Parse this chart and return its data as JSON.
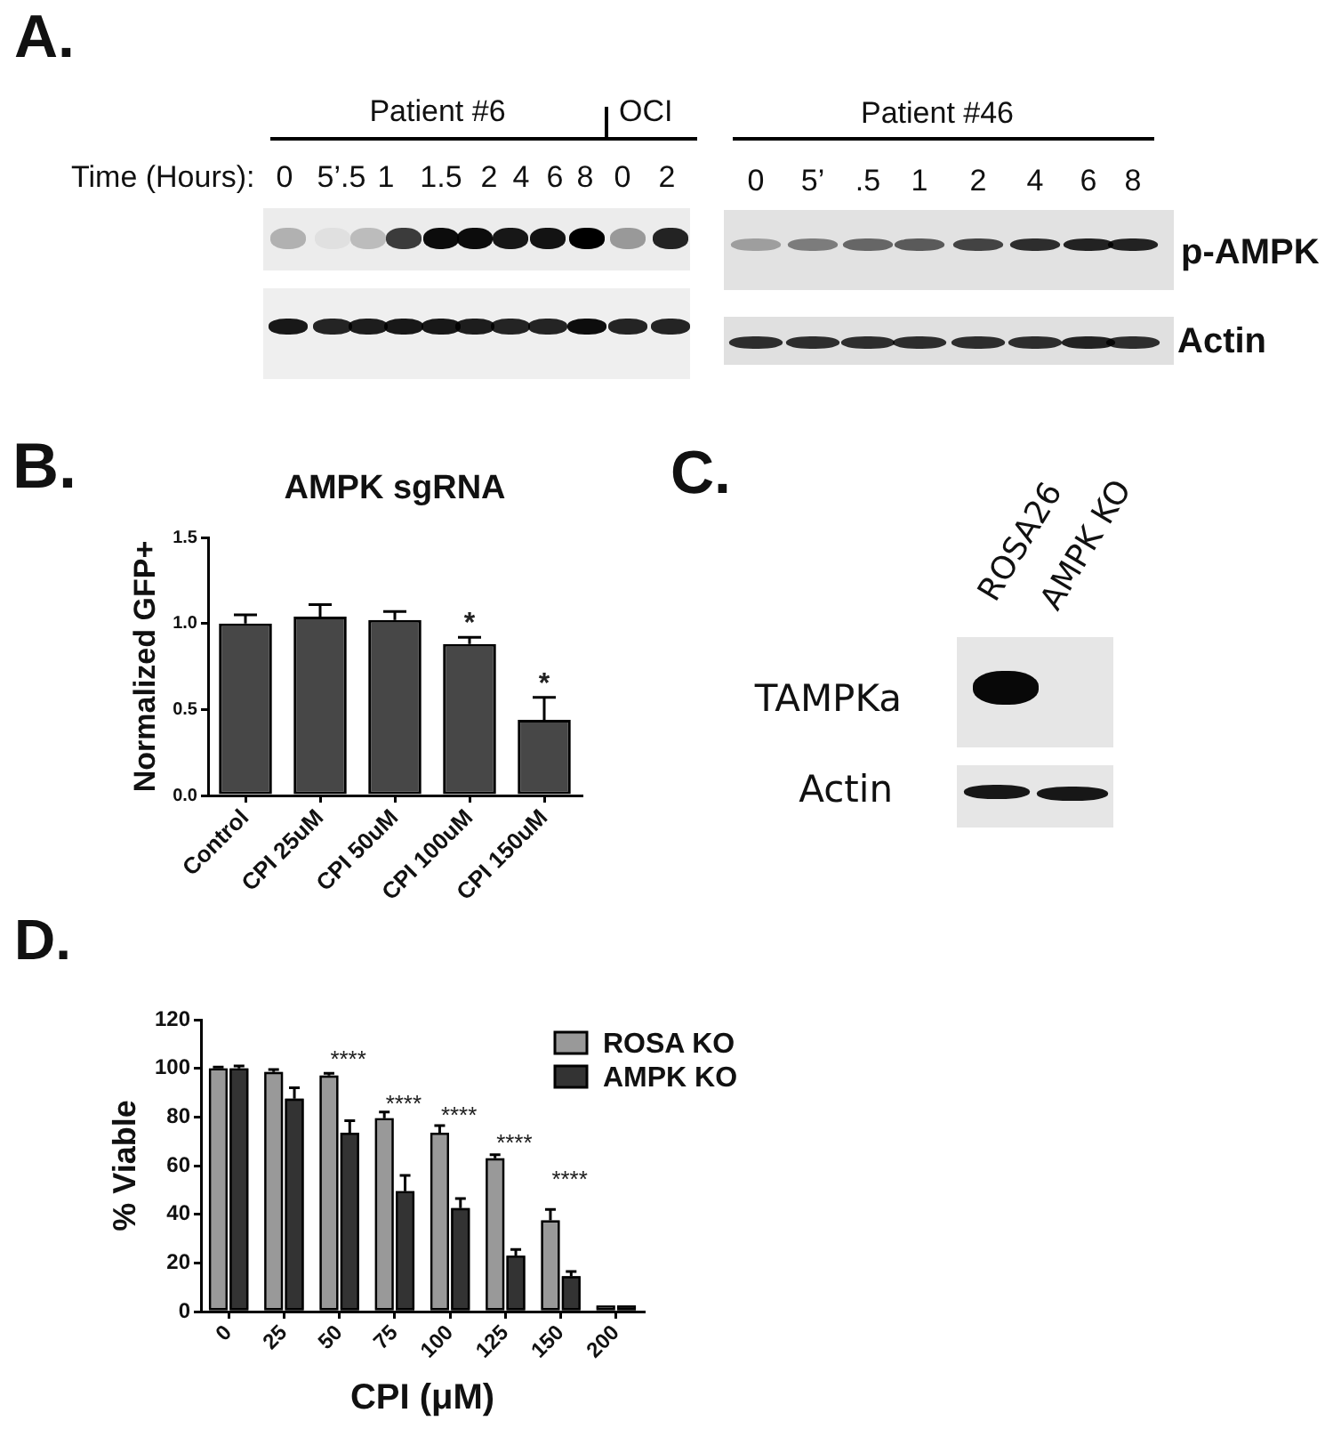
{
  "chart_data": [
    {
      "type": "other",
      "annotations": [
        "A.",
        "Patient #6",
        "OCI",
        "Time (Hours):",
        "0",
        "5’.5",
        "1",
        "1.5",
        "2",
        "4",
        "6",
        "8",
        "0",
        "2",
        "Patient #46",
        "0",
        "5’",
        ".5",
        "1",
        "2",
        "4",
        "6",
        "8",
        "p-AMPK",
        "Actin"
      ]
    },
    {
      "type": "bar",
      "title": "AMPK sgRNA",
      "ylabel": "Normalized GFP+",
      "categories": [
        "Control",
        "CPI 25uM",
        "CPI 50uM",
        "CPI 100uM",
        "CPI 150uM"
      ],
      "values": [
        1.0,
        1.04,
        1.02,
        0.88,
        0.44
      ],
      "color": "#474747",
      "errors": [
        [
          1.0,
          1.05
        ],
        [
          1.04,
          1.11
        ],
        [
          1.02,
          1.07
        ],
        [
          0.88,
          0.92
        ],
        [
          0.44,
          0.57
        ]
      ],
      "ylim": [
        0,
        1.5
      ],
      "yticks": [
        {
          "value": 0,
          "label": "0.0"
        },
        0.5,
        {
          "value": 1,
          "label": "1.0"
        },
        1.5
      ],
      "annotations": [
        "B.",
        "*",
        "*"
      ]
    },
    {
      "type": "other",
      "annotations": [
        "C.",
        "ROSA26",
        "AMPK KO",
        "TAMPKa",
        "Actin"
      ]
    },
    {
      "type": "bar",
      "xlabel": "CPI (μM)",
      "ylabel": "% Viable",
      "categories": [
        "0",
        "25",
        "50",
        "75",
        "100",
        "125",
        "150",
        "200"
      ],
      "series": [
        {
          "name": "ROSA KO",
          "color": "#999999",
          "values": [
            100,
            98.5,
            97,
            79.5,
            73.5,
            63,
            37.5,
            2.5
          ],
          "errors": [
            [
              100,
              100.5
            ],
            [
              98.5,
              99.5
            ],
            [
              97,
              98
            ],
            [
              79.5,
              82
            ],
            [
              73.5,
              76.5
            ],
            [
              63,
              64.5
            ],
            [
              37.5,
              42
            ],
            null
          ]
        },
        {
          "name": "AMPK KO",
          "color": "#333333",
          "values": [
            100,
            87.5,
            73.5,
            49.5,
            42.5,
            23,
            14.5,
            2.5
          ],
          "errors": [
            [
              100,
              101
            ],
            [
              87.5,
              92
            ],
            [
              73.5,
              78.5
            ],
            [
              49.5,
              56
            ],
            [
              42.5,
              46.5
            ],
            [
              23,
              25.5
            ],
            [
              14.5,
              16.5
            ],
            null
          ]
        }
      ],
      "ylim": [
        0,
        120
      ],
      "yticks": [
        0,
        20,
        40,
        60,
        80,
        100,
        120
      ],
      "legend": "top right",
      "annotations": [
        "D.",
        "****",
        "****",
        "****",
        "****",
        "****"
      ]
    }
  ]
}
